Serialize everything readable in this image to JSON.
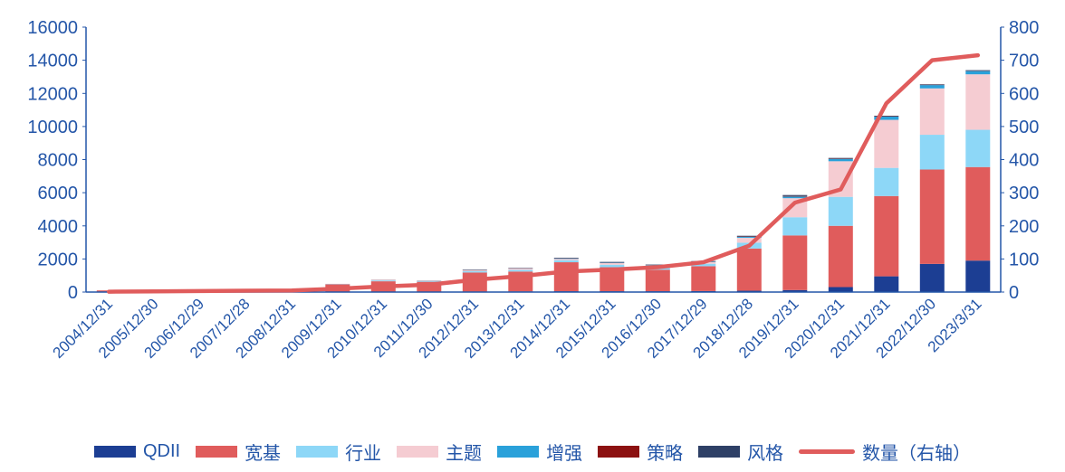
{
  "page": {
    "background": "#ffffff"
  },
  "colors": {
    "axis_text": "#2456a8",
    "axis_line": "#2456a8"
  },
  "legend": {
    "position": "bottom",
    "items": [
      {
        "label": "QDII",
        "color": "#1c3e93",
        "type": "bar"
      },
      {
        "label": "宽基",
        "color": "#e05c5c",
        "type": "bar"
      },
      {
        "label": "行业",
        "color": "#8dd7f7",
        "type": "bar"
      },
      {
        "label": "主题",
        "color": "#f5ccd2",
        "type": "bar"
      },
      {
        "label": "增强",
        "color": "#2aa1da",
        "type": "bar"
      },
      {
        "label": "策略",
        "color": "#8c1111",
        "type": "bar"
      },
      {
        "label": "风格",
        "color": "#2e4066",
        "type": "bar"
      },
      {
        "label": "数量（右轴）",
        "color": "#e05c5c",
        "type": "line"
      }
    ]
  },
  "chart_data": {
    "type": "bar",
    "stacked": true,
    "title": "",
    "xlabel": "",
    "ylabel_left": "",
    "ylabel_right": "",
    "grid": false,
    "categories": [
      "2004/12/31",
      "2005/12/30",
      "2006/12/29",
      "2007/12/28",
      "2008/12/31",
      "2009/12/31",
      "2010/12/31",
      "2011/12/30",
      "2012/12/31",
      "2013/12/31",
      "2014/12/31",
      "2015/12/31",
      "2016/12/30",
      "2017/12/29",
      "2018/12/28",
      "2019/12/31",
      "2020/12/31",
      "2021/12/31",
      "2022/12/30",
      "2023/3/31"
    ],
    "bar_series": [
      {
        "name": "QDII",
        "color": "#1c3e93",
        "values": [
          0,
          0,
          0,
          0,
          0,
          0,
          0,
          20,
          30,
          40,
          50,
          50,
          50,
          60,
          80,
          120,
          300,
          950,
          1700,
          1900
        ]
      },
      {
        "name": "宽基",
        "color": "#e05c5c",
        "values": [
          100,
          100,
          100,
          150,
          150,
          470,
          650,
          600,
          1150,
          1200,
          1750,
          1450,
          1300,
          1500,
          2550,
          3300,
          3700,
          4850,
          5700,
          5650
        ]
      },
      {
        "name": "行业",
        "color": "#8dd7f7",
        "values": [
          0,
          0,
          0,
          0,
          0,
          20,
          50,
          50,
          80,
          100,
          120,
          150,
          150,
          150,
          350,
          1100,
          1750,
          1700,
          2100,
          2250
        ]
      },
      {
        "name": "主题",
        "color": "#f5ccd2",
        "values": [
          0,
          0,
          0,
          0,
          0,
          10,
          40,
          30,
          60,
          80,
          80,
          100,
          100,
          100,
          300,
          1150,
          2150,
          2900,
          2800,
          3350
        ]
      },
      {
        "name": "增强",
        "color": "#2aa1da",
        "values": [
          0,
          0,
          0,
          0,
          0,
          0,
          0,
          0,
          10,
          10,
          20,
          20,
          20,
          20,
          60,
          100,
          150,
          200,
          200,
          200
        ]
      },
      {
        "name": "策略",
        "color": "#8c1111",
        "values": [
          0,
          0,
          0,
          0,
          0,
          0,
          0,
          0,
          10,
          10,
          10,
          10,
          10,
          10,
          20,
          30,
          30,
          20,
          20,
          20
        ]
      },
      {
        "name": "风格",
        "color": "#2e4066",
        "values": [
          0,
          0,
          0,
          0,
          0,
          0,
          10,
          10,
          20,
          20,
          40,
          40,
          30,
          30,
          40,
          60,
          20,
          30,
          30,
          30
        ]
      }
    ],
    "line_series": {
      "name": "数量（右轴）",
      "color": "#e05c5c",
      "axis": "right",
      "values": [
        1,
        2,
        3,
        4,
        5,
        10,
        17,
        22,
        37,
        48,
        62,
        68,
        75,
        90,
        140,
        270,
        310,
        570,
        700,
        715
      ]
    },
    "left_axis": {
      "min": 0,
      "max": 16000,
      "step": 2000,
      "ticks": [
        "0",
        "2000",
        "4000",
        "6000",
        "8000",
        "10000",
        "12000",
        "14000",
        "16000"
      ]
    },
    "right_axis": {
      "min": 0,
      "max": 800,
      "step": 100,
      "ticks": [
        "0",
        "100",
        "200",
        "300",
        "400",
        "500",
        "600",
        "700",
        "800"
      ]
    }
  }
}
